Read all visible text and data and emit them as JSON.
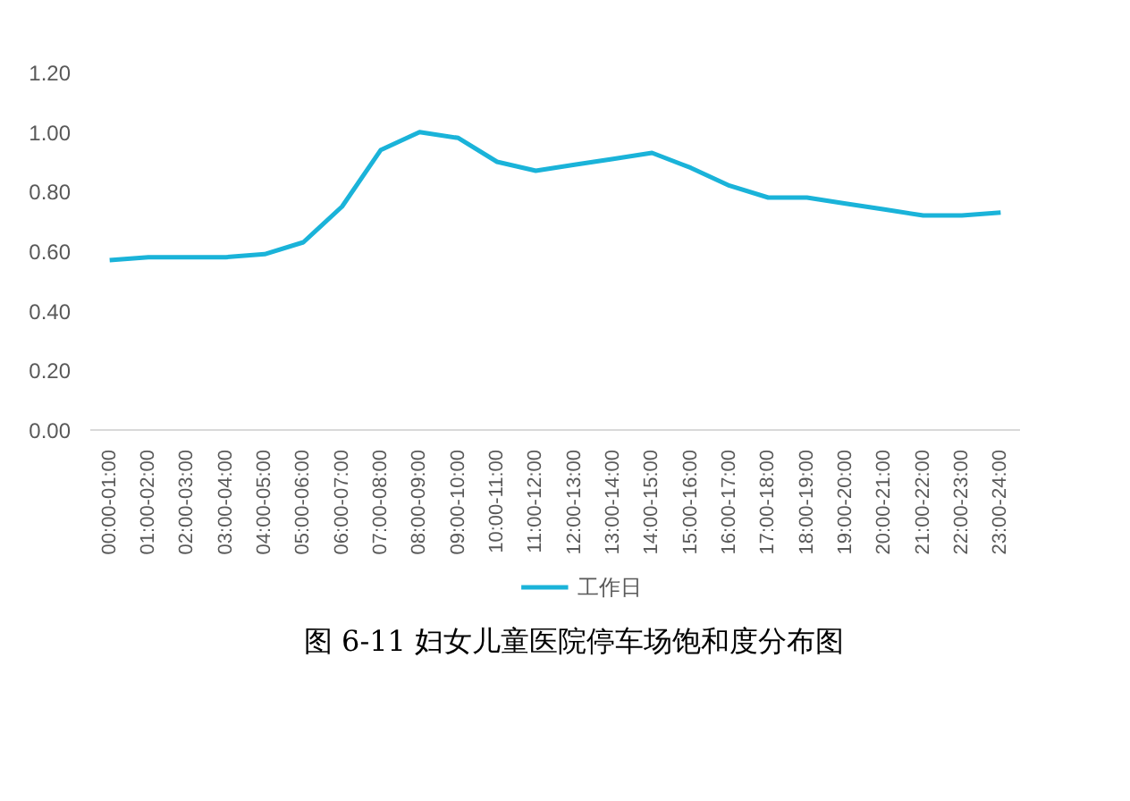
{
  "chart_data": {
    "type": "line",
    "title": "图 6-11 妇女儿童医院停车场饱和度分布图",
    "categories": [
      "00:00-01:00",
      "01:00-02:00",
      "02:00-03:00",
      "03:00-04:00",
      "04:00-05:00",
      "05:00-06:00",
      "06:00-07:00",
      "07:00-08:00",
      "08:00-09:00",
      "09:00-10:00",
      "10:00-11:00",
      "11:00-12:00",
      "12:00-13:00",
      "13:00-14:00",
      "14:00-15:00",
      "15:00-16:00",
      "16:00-17:00",
      "17:00-18:00",
      "18:00-19:00",
      "19:00-20:00",
      "20:00-21:00",
      "21:00-22:00",
      "22:00-23:00",
      "23:00-24:00"
    ],
    "series": [
      {
        "name": "工作日",
        "color": "#1ab3d9",
        "values": [
          0.57,
          0.58,
          0.58,
          0.58,
          0.59,
          0.63,
          0.75,
          0.94,
          1.0,
          0.98,
          0.9,
          0.87,
          0.89,
          0.91,
          0.93,
          0.88,
          0.82,
          0.78,
          0.78,
          0.76,
          0.74,
          0.72,
          0.72,
          0.73
        ]
      }
    ],
    "ylim": [
      0,
      1.2
    ],
    "yticks": [
      {
        "value": 0,
        "label": "0.00"
      },
      {
        "value": 0.2,
        "label": "0.20"
      },
      {
        "value": 0.4,
        "label": "0.40"
      },
      {
        "value": 0.6,
        "label": "0.60"
      },
      {
        "value": 0.8,
        "label": "0.80"
      },
      {
        "value": 1.0,
        "label": "1.00"
      },
      {
        "value": 1.2,
        "label": "1.20"
      }
    ],
    "legend": "bottom",
    "grid": false,
    "marker": "none",
    "line_style": "solid"
  }
}
